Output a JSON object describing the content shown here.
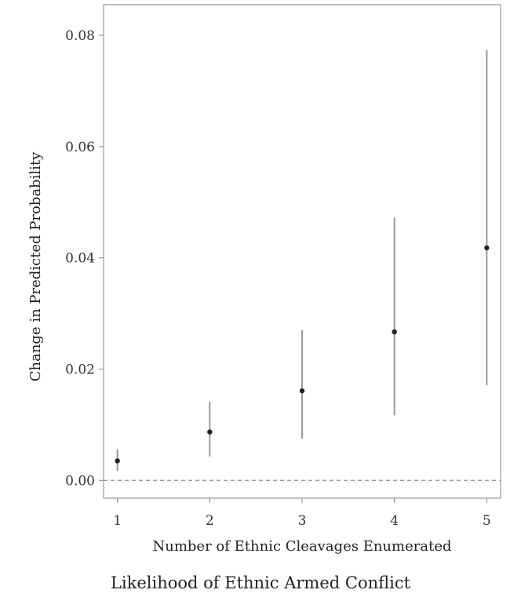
{
  "caption": "Likelihood of Ethnic Armed Conflict",
  "chart_data": {
    "type": "scatter",
    "subtype": "point-range",
    "title": "",
    "xlabel": "Number of Ethnic Cleavages Enumerated",
    "ylabel": "Change in Predicted Probability",
    "xlim": [
      0.85,
      5.15
    ],
    "ylim": [
      -0.0032,
      0.0855
    ],
    "x_ticks": [
      1,
      2,
      3,
      4,
      5
    ],
    "x_tick_labels": [
      "1",
      "2",
      "3",
      "4",
      "5"
    ],
    "y_ticks": [
      0.0,
      0.02,
      0.04,
      0.06,
      0.08
    ],
    "y_tick_labels": [
      "0.00",
      "0.02",
      "0.04",
      "0.06",
      "0.08"
    ],
    "reference_line": {
      "y": 0.0,
      "style": "dashed"
    },
    "grid": false,
    "points": [
      {
        "x": 1,
        "y": 0.0035,
        "lower": 0.0017,
        "upper": 0.0056
      },
      {
        "x": 2,
        "y": 0.0087,
        "lower": 0.0043,
        "upper": 0.0141
      },
      {
        "x": 3,
        "y": 0.0161,
        "lower": 0.0075,
        "upper": 0.027
      },
      {
        "x": 4,
        "y": 0.0267,
        "lower": 0.0117,
        "upper": 0.0472
      },
      {
        "x": 5,
        "y": 0.0418,
        "lower": 0.0171,
        "upper": 0.0774
      }
    ],
    "colors": {
      "point": "#222222",
      "interval": "#999999",
      "frame": "#999999",
      "reference": "#9a9a9a"
    }
  }
}
